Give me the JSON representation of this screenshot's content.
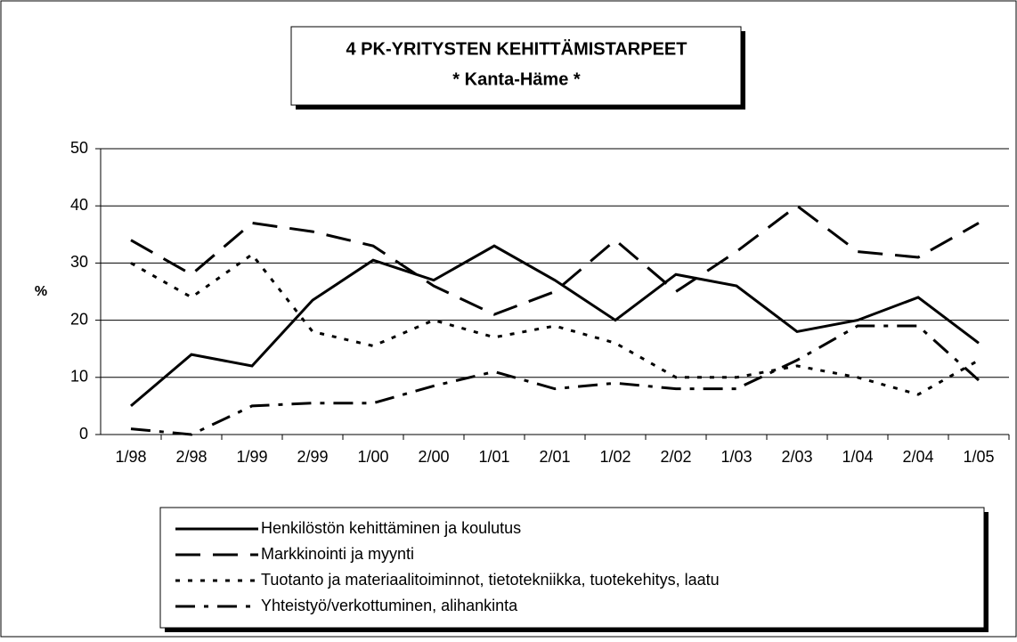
{
  "chart_data": {
    "type": "line",
    "title": "4 PK-YRITYSTEN KEHITTÄMISTARPEET",
    "subtitle": "* Kanta-Häme *",
    "y_label": "%",
    "categories": [
      "1/98",
      "2/98",
      "1/99",
      "2/99",
      "1/00",
      "2/00",
      "1/01",
      "2/01",
      "1/02",
      "2/02",
      "1/03",
      "2/03",
      "1/04",
      "2/04",
      "1/05"
    ],
    "series": [
      {
        "name": "Henkilöstön kehittäminen ja koulutus",
        "color": "#000000",
        "dash": "solid",
        "values": [
          5,
          14,
          12,
          23.5,
          30.5,
          27,
          33,
          27,
          20,
          28,
          26,
          18,
          20,
          24,
          16
        ]
      },
      {
        "name": "Markkinointi ja myynti",
        "color": "#000000",
        "dash": "dashed",
        "values": [
          34,
          28,
          37,
          35.5,
          33,
          26,
          21,
          25,
          34,
          25,
          32,
          40,
          32,
          31,
          37
        ]
      },
      {
        "name": "Tuotanto ja materiaalitoiminnot, tietotekniikka, tuotekehitys, laatu",
        "color": "#000000",
        "dash": "dotted",
        "values": [
          30,
          24,
          31.5,
          18,
          15.5,
          20,
          17,
          19,
          16,
          10,
          10,
          12,
          10,
          7,
          13
        ]
      },
      {
        "name": "Yhteistyö/verkottuminen, alihankinta",
        "color": "#000000",
        "dash": "dashdot",
        "values": [
          1,
          0,
          5,
          5.5,
          5.5,
          8.5,
          11,
          8,
          9,
          8,
          8,
          13,
          19,
          19,
          9.5
        ]
      }
    ],
    "ylim": [
      0,
      50
    ],
    "yticks": [
      0,
      10,
      20,
      30,
      40,
      50
    ],
    "grid": true,
    "legend": "bottom"
  }
}
